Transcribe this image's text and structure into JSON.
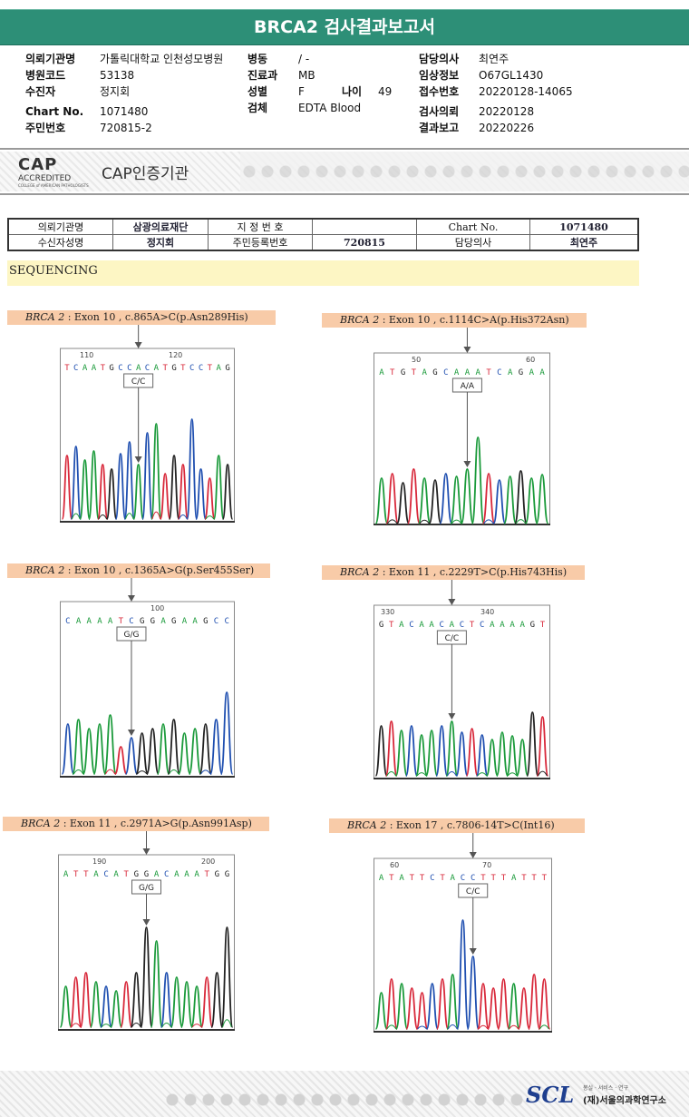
{
  "report": {
    "title": "BRCA2 검사결과보고서",
    "col1": [
      {
        "label": "의뢰기관명",
        "value": "가톨릭대학교 인천성모병원"
      },
      {
        "label": "병원코드",
        "value": "53138"
      },
      {
        "label": "수진자",
        "value": "정지회"
      },
      {
        "label": "Chart No.",
        "value": "1071480"
      },
      {
        "label": "주민번호",
        "value": "720815-2"
      }
    ],
    "col2": [
      {
        "label": "병동",
        "value": "/ -"
      },
      {
        "label": "진료과",
        "value": "MB"
      },
      {
        "label": "성별",
        "value": "F"
      },
      {
        "label": "검체",
        "value": "EDTA Blood"
      }
    ],
    "age": {
      "label": "나이",
      "value": "49"
    },
    "col3": [
      {
        "label": "담당의사",
        "value": "최연주"
      },
      {
        "label": "임상정보",
        "value": "O67GL1430"
      },
      {
        "label": "접수번호",
        "value": "20220128-14065"
      },
      {
        "label": "검사의뢰",
        "value": "20220128"
      },
      {
        "label": "결과보고",
        "value": "20220226"
      }
    ]
  },
  "cap": {
    "logo_big": "CAP",
    "logo_acc": "ACCREDITED",
    "logo_small": "COLLEGE of AMERICAN PATHOLOGISTS",
    "text": "CAP인증기관"
  },
  "patient_table": {
    "r1": [
      "의뢰기관명",
      "삼광의료재단",
      "지 정 번 호",
      "",
      "Chart No.",
      "1071480"
    ],
    "r2": [
      "수신자성명",
      "정지회",
      "주민등록번호",
      "720815",
      "담당의사",
      "최연주"
    ]
  },
  "section": "SEQUENCING",
  "panels": [
    {
      "gene": "BRCA 2",
      "text": " : Exon 10 , c.865A>C(p.Asn289His)",
      "pos1": "110",
      "pos2": "120",
      "bases": "TCAATGCCACATGTCCTAG",
      "call": "C/C"
    },
    {
      "gene": "BRCA 2",
      "text": " : Exon 10 , c.1114C>A(p.His372Asn)",
      "pos1": "50",
      "pos2": "60",
      "bases": "ATGTAGCAAATCAGAA",
      "call": "A/A"
    },
    {
      "gene": "BRCA 2",
      "text": " : Exon 10 , c.1365A>G(p.Ser455Ser)",
      "pos1": "",
      "pos2": "100",
      "bases": "CAAAATCGGAGAAGCC",
      "call": "G/G"
    },
    {
      "gene": "BRCA 2",
      "text": " : Exon 11 , c.2229T>C(p.His743His)",
      "pos1": "330",
      "pos2": "340",
      "bases": "GTACAACACTCAAAAGT",
      "call": "C/C"
    },
    {
      "gene": "BRCA 2",
      "text": " : Exon 11 , c.2971A>G(p.Asn991Asp)",
      "pos1": "190",
      "pos2": "200",
      "bases": "ATTACATGGACAAATGG",
      "call": "G/G"
    },
    {
      "gene": "BRCA 2",
      "text": " : Exon 17 , c.7806-14T>C(Int16)",
      "pos1": "60",
      "pos2": "70",
      "bases": "ATATTCTACCTTTATTT",
      "call": "C/C"
    }
  ],
  "colors": {
    "A": "#1a9a3a",
    "C": "#1f4fb0",
    "G": "#222222",
    "T": "#d8283a"
  },
  "footer": {
    "logo": "SCL",
    "sub": "봉실 · 서비스 · 연구",
    "org": "(재)서울의과학연구소"
  }
}
